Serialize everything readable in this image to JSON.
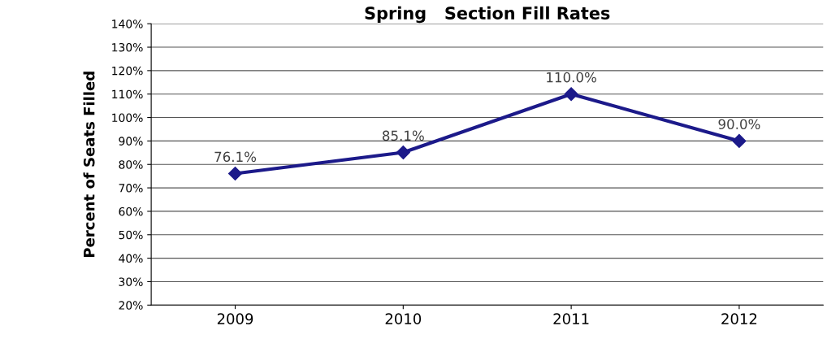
{
  "chart_data": {
    "type": "line",
    "title": "Spring   Section Fill Rates",
    "ylabel": "Percent of Seats Filled",
    "categories": [
      "2009",
      "2010",
      "2011",
      "2012"
    ],
    "series": [
      {
        "color": "#1c1a8a",
        "values": [
          76.1,
          85.1,
          110.0,
          90.0
        ],
        "value_labels": [
          "76.1%",
          "85.1%",
          "110.0%",
          "90.0%"
        ]
      }
    ],
    "ylim": [
      20,
      140
    ],
    "yticks": [
      {
        "value": 20,
        "label": "20%"
      },
      {
        "value": 30,
        "label": "30%"
      },
      {
        "value": 40,
        "label": "40%"
      },
      {
        "value": 50,
        "label": "50%"
      },
      {
        "value": 60,
        "label": "60%"
      },
      {
        "value": 70,
        "label": "70%"
      },
      {
        "value": 80,
        "label": "80%"
      },
      {
        "value": 90,
        "label": "90%"
      },
      {
        "value": 100,
        "label": "100%"
      },
      {
        "value": 110,
        "label": "110%"
      },
      {
        "value": 120,
        "label": "120%"
      },
      {
        "value": 130,
        "label": "130%"
      },
      {
        "value": 140,
        "label": "140%"
      }
    ],
    "grid": "y",
    "marker": "diamond",
    "line_style": "solid",
    "legend": false
  }
}
